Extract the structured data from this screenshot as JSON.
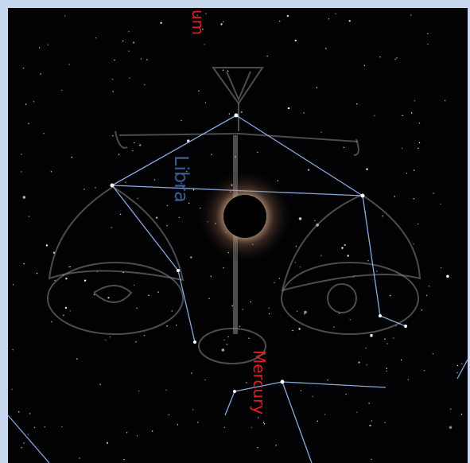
{
  "labels": {
    "top_planet": "um",
    "constellation": "Libra",
    "planet": "Mercury"
  }
}
